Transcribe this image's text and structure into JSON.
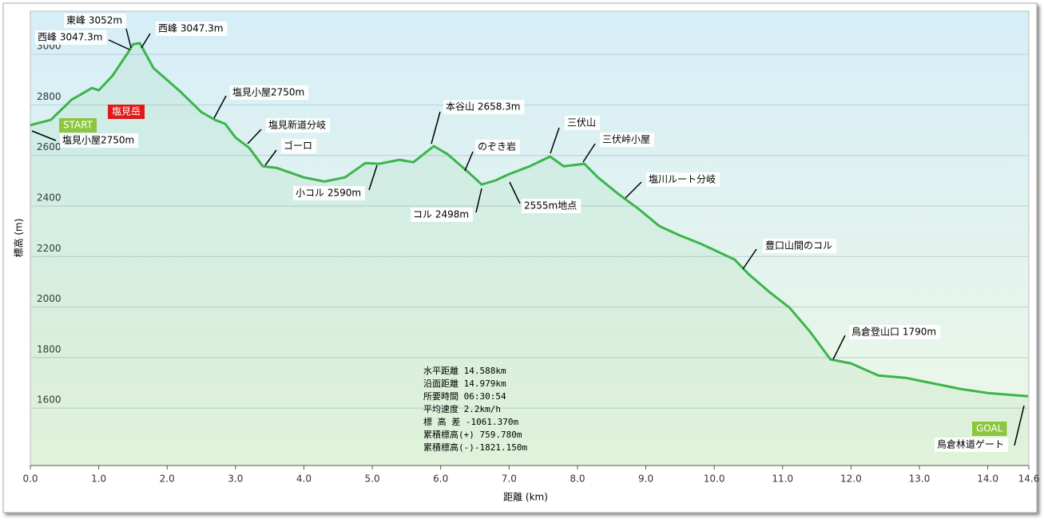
{
  "chart_data": {
    "type": "area",
    "x_label": "距離 (km)",
    "y_label": "標高 (m)",
    "x": [
      0,
      0.3,
      0.6,
      0.9,
      1.0,
      1.2,
      1.45,
      1.5,
      1.6,
      1.8,
      2.0,
      2.2,
      2.5,
      2.7,
      2.85,
      3.0,
      3.2,
      3.4,
      3.6,
      4.0,
      4.3,
      4.6,
      4.9,
      5.1,
      5.4,
      5.6,
      5.9,
      6.1,
      6.4,
      6.6,
      6.8,
      7.0,
      7.3,
      7.6,
      7.8,
      8.1,
      8.3,
      8.6,
      8.9,
      9.2,
      9.5,
      9.8,
      10.3,
      10.5,
      10.8,
      11.1,
      11.4,
      11.7,
      12.0,
      12.4,
      12.8,
      13.2,
      13.6,
      14.0,
      14.588
    ],
    "values": [
      2720,
      2741,
      2820,
      2867,
      2858,
      2915,
      3016,
      3040,
      3045,
      2946,
      2899,
      2851,
      2772,
      2741,
      2725,
      2671,
      2630,
      2557,
      2551,
      2513,
      2497,
      2513,
      2570,
      2567,
      2583,
      2573,
      2637,
      2605,
      2535,
      2485,
      2501,
      2526,
      2557,
      2596,
      2557,
      2567,
      2513,
      2447,
      2387,
      2320,
      2283,
      2251,
      2188,
      2131,
      2061,
      1998,
      1903,
      1793,
      1777,
      1729,
      1720,
      1698,
      1676,
      1660,
      1647
    ],
    "color": "#3cb44b",
    "xlim": [
      0,
      14.6
    ],
    "ylim": [
      1373,
      3171
    ],
    "xticks": [
      {
        "value": 0,
        "label": "0.0"
      },
      {
        "value": 1,
        "label": "1.0"
      },
      {
        "value": 2,
        "label": "2.0"
      },
      {
        "value": 3,
        "label": "3.0"
      },
      {
        "value": 4,
        "label": "4.0"
      },
      {
        "value": 5,
        "label": "5.0"
      },
      {
        "value": 6,
        "label": "6.0"
      },
      {
        "value": 7,
        "label": "7.0"
      },
      {
        "value": 8,
        "label": "8.0"
      },
      {
        "value": 9,
        "label": "9.0"
      },
      {
        "value": 10,
        "label": "10.0"
      },
      {
        "value": 11,
        "label": "11.0"
      },
      {
        "value": 12,
        "label": "12.0"
      },
      {
        "value": 13,
        "label": "13.0"
      },
      {
        "value": 14,
        "label": "14.0"
      },
      14.6
    ],
    "yticks": [
      1600,
      1800,
      2000,
      2200,
      2400,
      2600,
      2800,
      3000
    ],
    "grid": true,
    "annotations": [
      "東峰 3052m",
      "西峰 3047.3m",
      "西峰 3047.3m",
      "塩見小屋2750m",
      "塩見新道分岐",
      "ゴーロ",
      "小コル 2590m",
      "本谷山 2658.3m",
      "のぞき岩",
      "コル 2498m",
      "2555m地点",
      "三伏山",
      "三伏峠小屋",
      "塩川ルート分岐",
      "豊口山間のコル",
      "鳥倉登山口 1790m",
      "鳥倉林道ゲート",
      "塩見小屋2750m"
    ],
    "badges": [
      "START",
      "塩見岳",
      "GOAL"
    ],
    "stats": [
      "水平距離 14.588km",
      "沿面距離 14.979km",
      "所要時間 06:30:54",
      "平均速度 2.2km/h",
      "標 高 差 -1061.370m",
      "累積標高(+) 759.780m",
      "累積標高(-)-1821.150m"
    ]
  }
}
